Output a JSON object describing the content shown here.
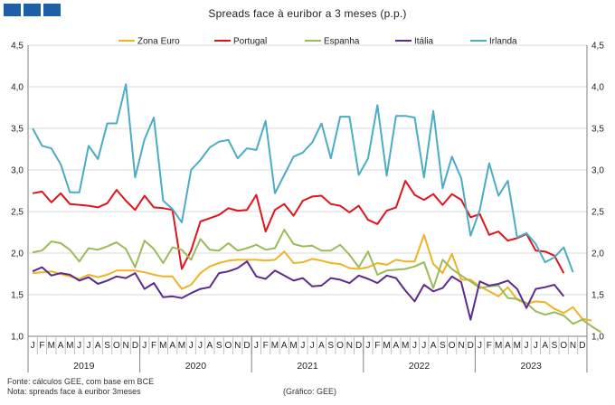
{
  "logo": {
    "name": "publisher-logo",
    "color": "#1f5fa8"
  },
  "chart_data": {
    "type": "line",
    "title": "Spreads face à euribor a 3 meses (p.p.)",
    "ylim": [
      1.0,
      4.5
    ],
    "yticks": [
      1.0,
      1.5,
      2.0,
      2.5,
      3.0,
      3.5,
      4.0,
      4.5
    ],
    "ytick_labels": [
      "1,0",
      "1,5",
      "2,0",
      "2,5",
      "3,0",
      "3,5",
      "4,0",
      "4,5"
    ],
    "month_labels": [
      "J",
      "F",
      "M",
      "A",
      "M",
      "J",
      "J",
      "A",
      "S",
      "O",
      "N",
      "D"
    ],
    "years": [
      "2019",
      "2020",
      "2021",
      "2022",
      "2023"
    ],
    "legend_position": "top",
    "grid": "horizontal",
    "series": [
      {
        "name": "Zona Euro",
        "color": "#f0b323",
        "values": [
          1.76,
          1.77,
          1.78,
          1.75,
          1.72,
          1.69,
          1.74,
          1.71,
          1.74,
          1.79,
          1.79,
          1.79,
          1.77,
          1.74,
          1.72,
          1.72,
          1.57,
          1.62,
          1.76,
          1.84,
          1.88,
          1.91,
          1.92,
          1.92,
          1.92,
          1.91,
          1.92,
          2.02,
          1.88,
          1.89,
          1.93,
          1.91,
          1.88,
          1.87,
          1.82,
          1.81,
          1.83,
          1.88,
          1.86,
          1.92,
          1.9,
          1.9,
          2.22,
          1.87,
          1.76,
          1.99,
          1.68,
          1.68,
          1.6,
          1.54,
          1.48,
          1.59,
          1.44,
          1.39,
          1.42,
          1.41,
          1.33,
          1.28,
          1.35,
          1.21,
          1.19
        ]
      },
      {
        "name": "Portugal",
        "color": "#e0141a",
        "values": [
          2.72,
          2.74,
          2.61,
          2.72,
          2.59,
          2.58,
          2.57,
          2.55,
          2.6,
          2.76,
          2.63,
          2.52,
          2.69,
          2.55,
          2.54,
          2.52,
          1.81,
          2.03,
          2.38,
          2.42,
          2.46,
          2.54,
          2.51,
          2.52,
          2.7,
          2.26,
          2.52,
          2.59,
          2.45,
          2.63,
          2.68,
          2.69,
          2.59,
          2.57,
          2.49,
          2.57,
          2.4,
          2.35,
          2.51,
          2.55,
          2.87,
          2.7,
          2.64,
          2.71,
          2.58,
          2.71,
          2.64,
          2.43,
          2.47,
          2.22,
          2.26,
          2.15,
          2.18,
          2.23,
          2.03,
          2.02,
          1.97,
          1.76
        ]
      },
      {
        "name": "Espanha",
        "color": "#9bbb59",
        "values": [
          2.01,
          2.03,
          2.14,
          2.12,
          2.04,
          1.9,
          2.06,
          2.04,
          2.08,
          2.13,
          2.05,
          1.83,
          2.15,
          2.05,
          1.88,
          2.07,
          2.04,
          1.92,
          2.17,
          2.04,
          2.03,
          2.12,
          2.03,
          2.06,
          2.1,
          2.04,
          2.06,
          2.28,
          2.11,
          2.08,
          2.09,
          2.03,
          2.03,
          2.1,
          1.98,
          1.83,
          2.02,
          1.74,
          1.79,
          1.8,
          1.81,
          1.84,
          1.89,
          1.58,
          1.92,
          1.81,
          1.73,
          1.66,
          1.58,
          1.6,
          1.61,
          1.46,
          1.45,
          1.4,
          1.3,
          1.26,
          1.29,
          1.25,
          1.15,
          1.2,
          1.12,
          1.05
        ]
      },
      {
        "name": "Itália",
        "color": "#5b2c8f",
        "values": [
          1.78,
          1.83,
          1.73,
          1.76,
          1.74,
          1.67,
          1.71,
          1.63,
          1.67,
          1.72,
          1.7,
          1.76,
          1.57,
          1.64,
          1.47,
          1.48,
          1.46,
          1.52,
          1.57,
          1.59,
          1.76,
          1.78,
          1.82,
          1.9,
          1.72,
          1.69,
          1.79,
          1.73,
          1.67,
          1.7,
          1.6,
          1.61,
          1.7,
          1.68,
          1.64,
          1.73,
          1.69,
          1.64,
          1.73,
          1.7,
          1.55,
          1.42,
          1.62,
          1.54,
          1.58,
          1.72,
          1.65,
          1.2,
          1.66,
          1.61,
          1.63,
          1.67,
          1.57,
          1.34,
          1.57,
          1.59,
          1.62,
          1.48
        ]
      },
      {
        "name": "Irlanda",
        "color": "#4bacc6",
        "values": [
          3.5,
          3.29,
          3.26,
          3.07,
          2.73,
          2.73,
          3.29,
          3.13,
          3.56,
          3.56,
          4.03,
          2.91,
          3.37,
          3.63,
          2.63,
          2.53,
          2.37,
          3.0,
          3.12,
          3.27,
          3.34,
          3.36,
          3.14,
          3.26,
          3.24,
          3.59,
          2.72,
          2.94,
          3.16,
          3.21,
          3.33,
          3.56,
          3.14,
          3.64,
          3.64,
          2.94,
          3.14,
          3.78,
          2.93,
          3.65,
          3.65,
          3.63,
          2.91,
          3.71,
          2.78,
          3.16,
          2.9,
          2.21,
          2.52,
          3.08,
          2.69,
          2.87,
          2.19,
          2.24,
          2.11,
          1.89,
          1.95,
          2.07,
          1.77
        ]
      }
    ]
  },
  "footer": {
    "source": "Fonte: cálculos GEE, com base em BCE",
    "note": "Nota: spreads face à euribor 3meses",
    "credit": "(Gráfico: GEE)"
  }
}
